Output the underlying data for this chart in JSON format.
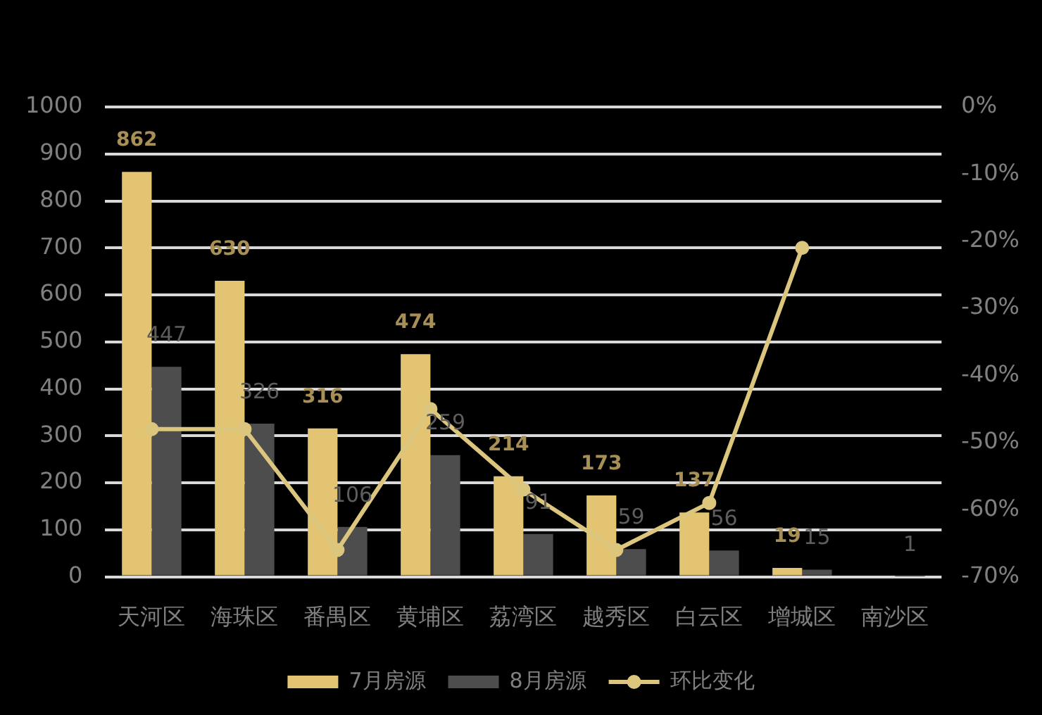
{
  "chart_data": {
    "type": "bar",
    "categories": [
      "天河区",
      "海珠区",
      "番禺区",
      "黄埔区",
      "荔湾区",
      "越秀区",
      "白云区",
      "增城区",
      "南沙区"
    ],
    "series": [
      {
        "name": "7月房源",
        "color": "#e2c472",
        "values": [
          862,
          630,
          316,
          474,
          214,
          173,
          137,
          19,
          null
        ],
        "value_labels": [
          "862",
          "630",
          "316",
          "474",
          "214",
          "173",
          "137",
          "19",
          null
        ]
      },
      {
        "name": "8月房源",
        "color": "#4d4d4d",
        "values": [
          447,
          326,
          106,
          259,
          91,
          59,
          56,
          15,
          1
        ],
        "value_labels": [
          "447",
          "326",
          "106",
          "259",
          "91",
          "59",
          "56",
          "15",
          "1"
        ]
      },
      {
        "name": "环比变化",
        "type": "line",
        "axis": "y2",
        "color": "#dcc67e",
        "marker": "circle",
        "line_style": "solid",
        "values": [
          -48,
          -48,
          -66,
          -45,
          -57,
          -66,
          -59,
          -21,
          null
        ]
      }
    ],
    "ylim": [
      0,
      1000
    ],
    "yticks": [
      0,
      100,
      200,
      300,
      400,
      500,
      600,
      700,
      800,
      900,
      1000
    ],
    "y2lim": [
      -70,
      0
    ],
    "y2ticks": [
      {
        "value": -70,
        "label": "-70%"
      },
      {
        "value": -60,
        "label": "-60%"
      },
      {
        "value": -50,
        "label": "-50%"
      },
      {
        "value": -40,
        "label": "-40%"
      },
      {
        "value": -30,
        "label": "-30%"
      },
      {
        "value": -20,
        "label": "-20%"
      },
      {
        "value": -10,
        "label": "-10%"
      },
      {
        "value": 0,
        "label": "0%"
      }
    ],
    "grid": "y",
    "legend": "bottom"
  }
}
